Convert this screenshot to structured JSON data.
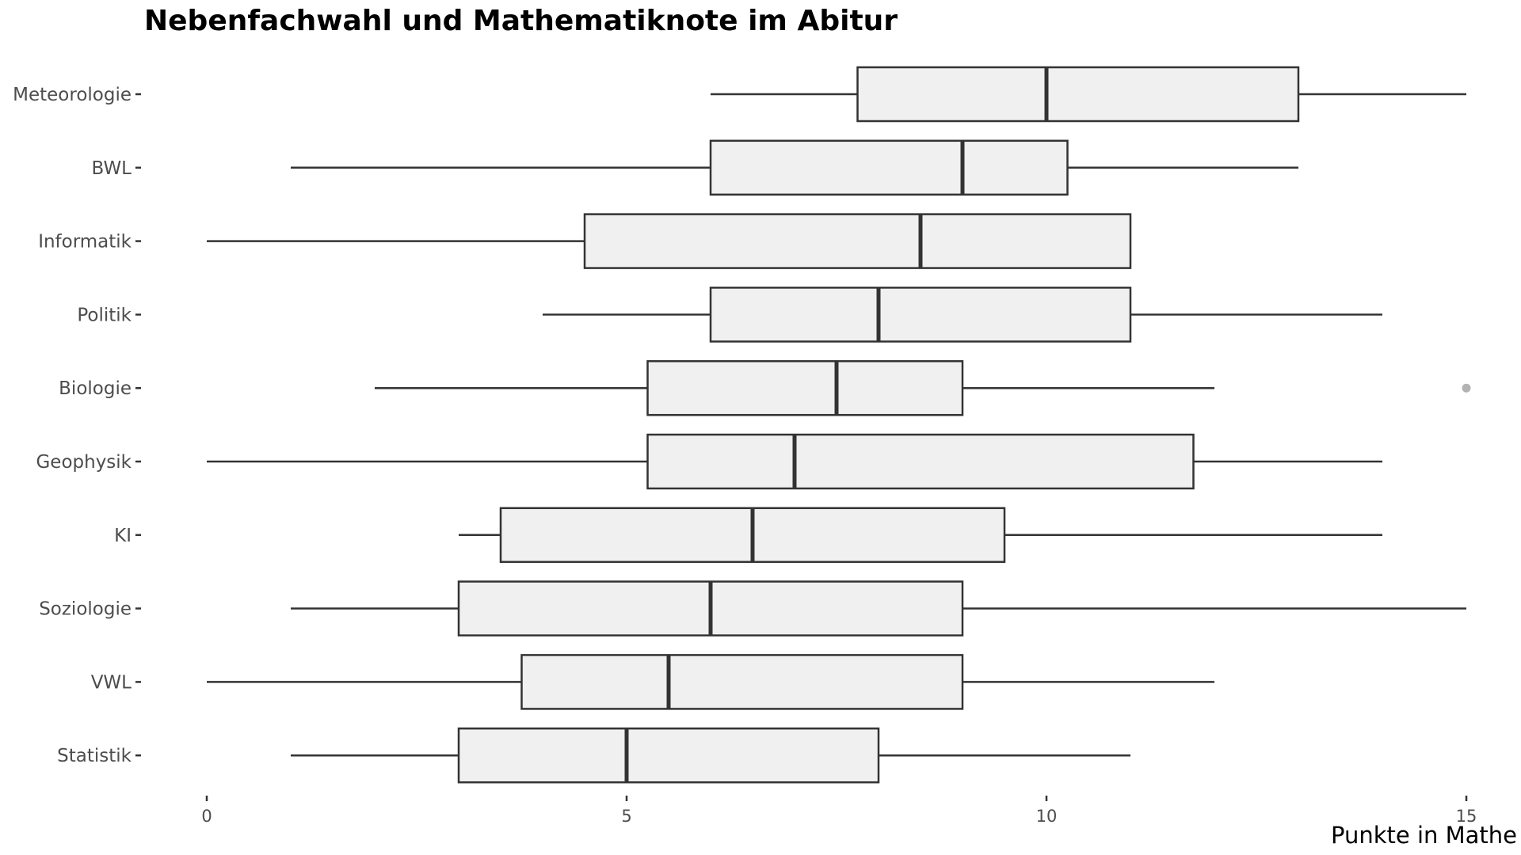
{
  "chart_data": {
    "type": "boxplot",
    "orientation": "horizontal",
    "title": "Nebenfachwahl und Mathematiknote im Abitur",
    "xlabel": "Punkte in Mathe",
    "ylabel": "",
    "xlim": [
      0,
      15
    ],
    "x_ticks": [
      0,
      5,
      10,
      15
    ],
    "grid": false,
    "legend": "none",
    "box_fill": "#f0f0f0",
    "line_color": "#333333",
    "outlier_color": "#b3b3b3",
    "categories": [
      "Meteorologie",
      "BWL",
      "Informatik",
      "Politik",
      "Biologie",
      "Geophysik",
      "KI",
      "Soziologie",
      "VWL",
      "Statistik"
    ],
    "boxes": [
      {
        "category": "Meteorologie",
        "whisker_low": 6,
        "q1": 7.75,
        "median": 10,
        "q3": 13,
        "whisker_high": 15,
        "outliers": []
      },
      {
        "category": "BWL",
        "whisker_low": 1,
        "q1": 6,
        "median": 9,
        "q3": 10.25,
        "whisker_high": 13,
        "outliers": []
      },
      {
        "category": "Informatik",
        "whisker_low": 0,
        "q1": 4.5,
        "median": 8.5,
        "q3": 11,
        "whisker_high": 11,
        "outliers": []
      },
      {
        "category": "Politik",
        "whisker_low": 4,
        "q1": 6,
        "median": 8,
        "q3": 11,
        "whisker_high": 14,
        "outliers": []
      },
      {
        "category": "Biologie",
        "whisker_low": 2,
        "q1": 5.25,
        "median": 7.5,
        "q3": 9,
        "whisker_high": 12,
        "outliers": [
          15
        ]
      },
      {
        "category": "Geophysik",
        "whisker_low": 0,
        "q1": 5.25,
        "median": 7,
        "q3": 11.75,
        "whisker_high": 14,
        "outliers": []
      },
      {
        "category": "KI",
        "whisker_low": 3,
        "q1": 3.5,
        "median": 6.5,
        "q3": 9.5,
        "whisker_high": 14,
        "outliers": []
      },
      {
        "category": "Soziologie",
        "whisker_low": 1,
        "q1": 3,
        "median": 6,
        "q3": 9,
        "whisker_high": 15,
        "outliers": []
      },
      {
        "category": "VWL",
        "whisker_low": 0,
        "q1": 3.75,
        "median": 5.5,
        "q3": 9,
        "whisker_high": 12,
        "outliers": []
      },
      {
        "category": "Statistik",
        "whisker_low": 1,
        "q1": 3,
        "median": 5,
        "q3": 8,
        "whisker_high": 11,
        "outliers": []
      }
    ]
  }
}
